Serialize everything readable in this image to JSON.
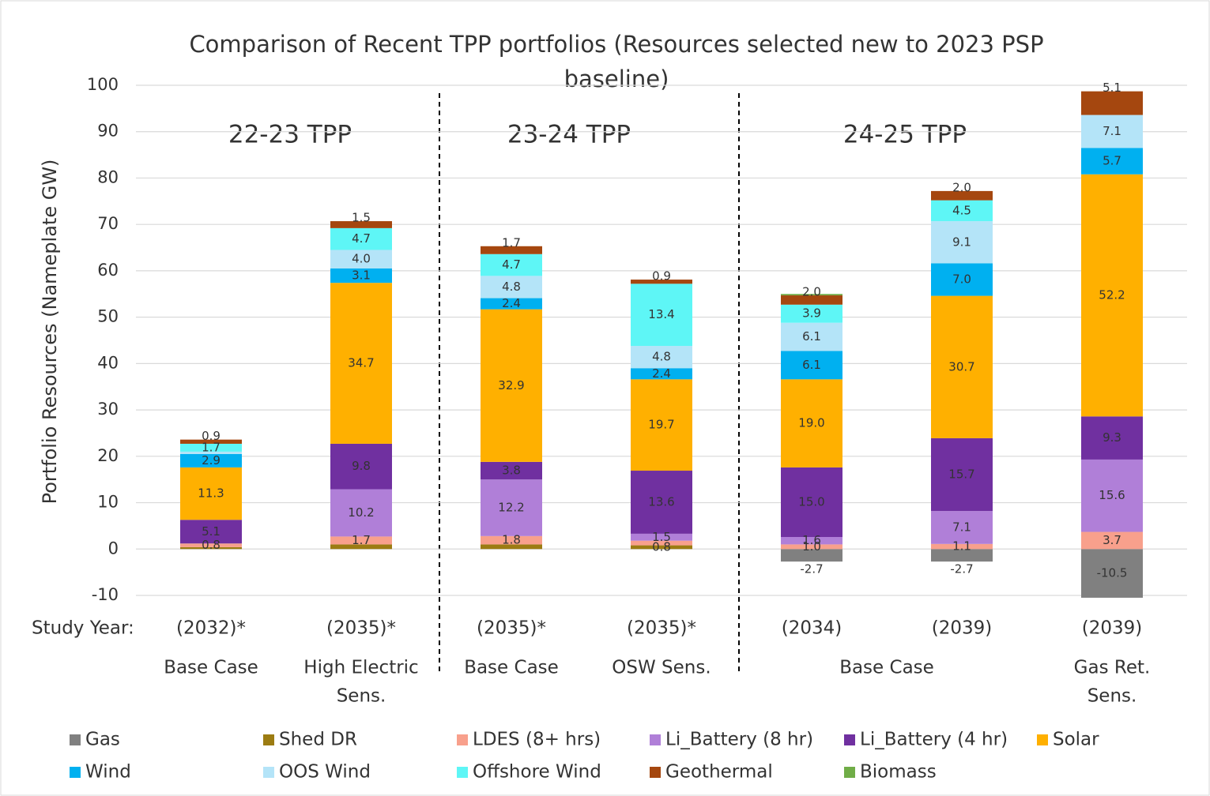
{
  "chart_data": {
    "type": "stacked_bar",
    "title": [
      "Comparison of Recent TPP portfolios (Resources selected new to 2023 PSP",
      "baseline)"
    ],
    "y_label": "Portfolio Resources (Nameplate GW)",
    "x_label": "Study Year:",
    "categories": [
      "(2032)*",
      "(2035)*",
      "(2035)*",
      "(2035)*",
      "(2034)",
      "(2039)",
      "(2039)"
    ],
    "case_labels": [
      [
        "Base Case"
      ],
      [
        "High Electric",
        "Sens."
      ],
      [
        "Base Case"
      ],
      [
        "OSW Sens."
      ],
      [
        "Base Case"
      ],
      [
        "Gas Ret.",
        "Sens."
      ]
    ],
    "annotations": [
      "22-23 TPP",
      "23-24 TPP",
      "24-25 TPP"
    ],
    "ylim": [
      -10,
      100
    ],
    "yticks": [
      -10,
      0,
      10,
      20,
      30,
      40,
      50,
      60,
      70,
      80,
      90,
      100
    ],
    "grid": true,
    "legend": "bottom",
    "series": [
      {
        "name": "Gas",
        "color": "#808080",
        "values": [
          0,
          0,
          0,
          0,
          -2.7,
          -2.7,
          -10.5
        ],
        "value_labels": [
          null,
          null,
          null,
          null,
          "-2.7",
          "-2.7",
          "-10.5"
        ]
      },
      {
        "name": "Shed DR",
        "color": "#9c7c12",
        "values": [
          0.4,
          1.0,
          1.0,
          0.8,
          0,
          0,
          0
        ],
        "value_labels": [
          null,
          null,
          null,
          "0.8",
          null,
          null,
          null
        ]
      },
      {
        "name": "LDES (8+ hrs)",
        "color": "#f8a08c",
        "values": [
          0.8,
          1.7,
          1.8,
          1.0,
          1.0,
          1.1,
          3.7
        ],
        "value_labels": [
          "0.8",
          "1.7",
          "1.8",
          null,
          "1.0",
          "1.1",
          "3.7"
        ]
      },
      {
        "name": "Li_Battery (8 hr)",
        "color": "#b07fd8",
        "values": [
          0,
          10.2,
          12.2,
          1.5,
          1.6,
          7.1,
          15.6
        ],
        "value_labels": [
          null,
          "10.2",
          "12.2",
          "1.5",
          "1.6",
          "7.1",
          "15.6"
        ]
      },
      {
        "name": "Li_Battery (4 hr)",
        "color": "#7030a0",
        "values": [
          5.1,
          9.8,
          3.8,
          13.6,
          15.0,
          15.7,
          9.3
        ],
        "value_labels": [
          "5.1",
          "9.8",
          "3.8",
          "13.6",
          "15.0",
          "15.7",
          "9.3"
        ]
      },
      {
        "name": "Solar",
        "color": "#ffb000",
        "values": [
          11.3,
          34.7,
          32.9,
          19.7,
          19.0,
          30.7,
          52.2
        ],
        "value_labels": [
          "11.3",
          "34.7",
          "32.9",
          "19.7",
          "19.0",
          "30.7",
          "52.2"
        ]
      },
      {
        "name": "Wind",
        "color": "#00b0f0",
        "values": [
          2.9,
          3.1,
          2.4,
          2.4,
          6.1,
          7.0,
          5.7
        ],
        "value_labels": [
          "2.9",
          "3.1",
          "2.4",
          "2.4",
          "6.1",
          "7.0",
          "5.7"
        ]
      },
      {
        "name": "OOS Wind",
        "color": "#b4e4f8",
        "values": [
          0.5,
          4.0,
          4.8,
          4.8,
          6.1,
          9.1,
          7.1
        ],
        "value_labels": [
          null,
          "4.0",
          "4.8",
          "4.8",
          "6.1",
          "9.1",
          "7.1"
        ]
      },
      {
        "name": "Offshore Wind",
        "color": "#5ef6f6",
        "values": [
          1.7,
          4.7,
          4.7,
          13.4,
          3.9,
          4.5,
          0
        ],
        "value_labels": [
          "1.7",
          "4.7",
          "4.7",
          "13.4",
          "3.9",
          "4.5",
          null
        ]
      },
      {
        "name": "Geothermal",
        "color": "#a5470f",
        "values": [
          0.9,
          1.5,
          1.7,
          0.9,
          2.0,
          2.0,
          5.1
        ],
        "value_labels": [
          "0.9",
          "1.5",
          "1.7",
          "0.9",
          "2.0",
          "2.0",
          "5.1"
        ]
      },
      {
        "name": "Biomass",
        "color": "#70ad47",
        "values": [
          0,
          0,
          0,
          0,
          0.3,
          0,
          0
        ],
        "value_labels": [
          null,
          null,
          null,
          null,
          null,
          null,
          null
        ]
      }
    ]
  }
}
